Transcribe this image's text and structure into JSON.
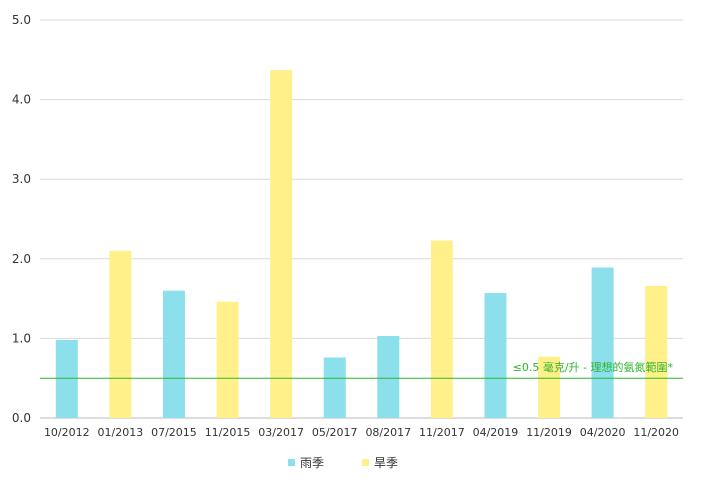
{
  "chart_data": {
    "type": "bar",
    "categories": [
      "10/2012",
      "01/2013",
      "07/2015",
      "11/2015",
      "03/2017",
      "05/2017",
      "08/2017",
      "11/2017",
      "04/2019",
      "11/2019",
      "04/2020",
      "11/2020"
    ],
    "values": [
      0.98,
      2.1,
      1.6,
      1.46,
      4.37,
      0.76,
      1.03,
      2.23,
      1.57,
      0.77,
      1.89,
      1.66
    ],
    "season": [
      "rainy",
      "dry",
      "rainy",
      "dry",
      "dry",
      "rainy",
      "rainy",
      "dry",
      "rainy",
      "dry",
      "rainy",
      "dry"
    ],
    "series": [
      {
        "key": "rainy",
        "name": "雨季",
        "color": "#8be0eb"
      },
      {
        "key": "dry",
        "name": "旱季",
        "color": "#fff08a"
      }
    ],
    "ylim": [
      0,
      5
    ],
    "yticks": [
      "0.0",
      "1.0",
      "2.0",
      "3.0",
      "4.0",
      "5.0"
    ],
    "grid": true,
    "legend_position": "bottom",
    "reference_line": {
      "value": 0.5,
      "label": "≤0.5 毫克/升 - 理想的氨氮範圍*",
      "color": "#2db52d"
    }
  }
}
